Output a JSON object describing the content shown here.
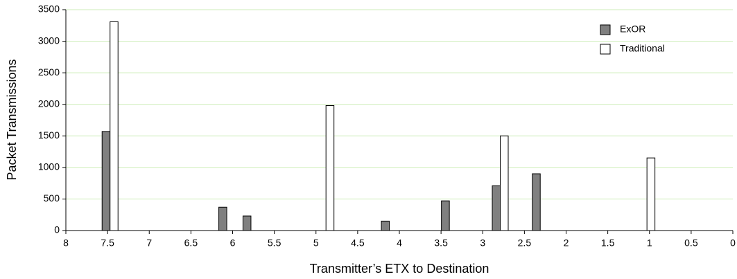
{
  "chart_data": {
    "type": "bar",
    "x_label": "Transmitter’s ETX to Destination",
    "y_label": "Packet Transmissions",
    "x": [
      7.47,
      6.07,
      5.78,
      4.88,
      4.12,
      3.4,
      2.79,
      2.31,
      1.03
    ],
    "series": [
      {
        "name": "ExOR",
        "color": "#808080",
        "values": [
          1570,
          370,
          230,
          0,
          150,
          470,
          710,
          900,
          0
        ]
      },
      {
        "name": "Traditional",
        "color": "#ffffff",
        "values": [
          3310,
          0,
          0,
          1980,
          0,
          0,
          1500,
          0,
          1150
        ]
      }
    ],
    "xlim": [
      8,
      0
    ],
    "xticks": [
      8,
      7.5,
      7,
      6.5,
      6,
      5.5,
      5,
      4.5,
      4,
      3.5,
      3,
      2.5,
      2,
      1.5,
      1,
      0.5,
      0
    ],
    "ylim": [
      0,
      3500
    ],
    "yticks": [
      0,
      500,
      1000,
      1500,
      2000,
      2500,
      3000,
      3500
    ],
    "grid": true,
    "grid_color": "#cdeeb8",
    "legend": "upper right"
  }
}
